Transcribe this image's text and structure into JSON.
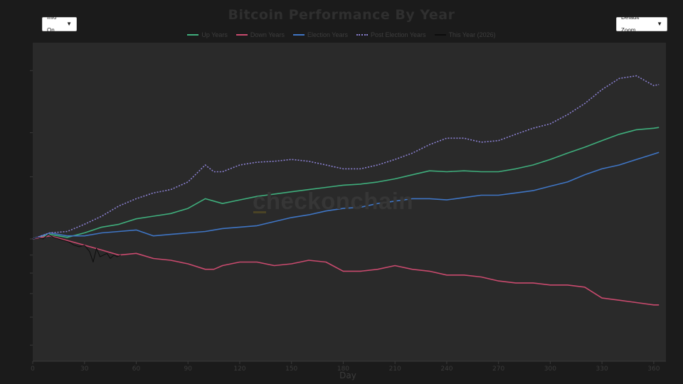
{
  "chart_data": {
    "type": "line",
    "title": "Bitcoin Performance By Year",
    "xlabel": "Day",
    "ylabel": "",
    "xlim": [
      0,
      365
    ],
    "ylim": [
      0.45,
      3.6
    ],
    "log_scale_y": true,
    "grid": false,
    "legend_position": "top-center",
    "x_ticks": [
      0,
      30,
      60,
      90,
      120,
      150,
      180,
      210,
      240,
      270,
      300,
      330,
      360
    ],
    "series": [
      {
        "name": "Up Years",
        "color": "#3fae7c",
        "style": "solid",
        "x": [
          0,
          10,
          20,
          30,
          40,
          50,
          60,
          70,
          80,
          90,
          100,
          105,
          110,
          120,
          130,
          140,
          150,
          160,
          170,
          180,
          190,
          200,
          210,
          220,
          230,
          240,
          250,
          260,
          270,
          280,
          290,
          300,
          310,
          320,
          330,
          340,
          350,
          360,
          363
        ],
        "y": [
          1.0,
          1.03,
          1.01,
          1.04,
          1.08,
          1.1,
          1.14,
          1.16,
          1.18,
          1.22,
          1.3,
          1.28,
          1.26,
          1.29,
          1.32,
          1.34,
          1.36,
          1.38,
          1.4,
          1.42,
          1.43,
          1.45,
          1.48,
          1.52,
          1.56,
          1.55,
          1.56,
          1.55,
          1.55,
          1.58,
          1.62,
          1.68,
          1.75,
          1.82,
          1.9,
          1.98,
          2.04,
          2.06,
          2.07
        ]
      },
      {
        "name": "Down Years",
        "color": "#c94a6e",
        "style": "solid",
        "x": [
          0,
          10,
          20,
          30,
          40,
          50,
          60,
          70,
          80,
          90,
          100,
          105,
          110,
          120,
          130,
          140,
          150,
          160,
          170,
          180,
          190,
          200,
          210,
          220,
          230,
          240,
          250,
          260,
          270,
          280,
          290,
          300,
          310,
          320,
          330,
          340,
          350,
          360,
          363
        ],
        "y": [
          1.0,
          1.02,
          0.99,
          0.96,
          0.93,
          0.9,
          0.91,
          0.88,
          0.87,
          0.85,
          0.82,
          0.82,
          0.84,
          0.86,
          0.86,
          0.84,
          0.85,
          0.87,
          0.86,
          0.81,
          0.81,
          0.82,
          0.84,
          0.82,
          0.81,
          0.79,
          0.79,
          0.78,
          0.76,
          0.75,
          0.75,
          0.74,
          0.74,
          0.73,
          0.68,
          0.67,
          0.66,
          0.65,
          0.65
        ]
      },
      {
        "name": "Election Years",
        "color": "#3f75c4",
        "style": "solid",
        "x": [
          0,
          10,
          20,
          30,
          40,
          50,
          60,
          70,
          80,
          90,
          100,
          105,
          110,
          120,
          130,
          140,
          150,
          160,
          170,
          180,
          190,
          200,
          210,
          220,
          230,
          240,
          250,
          260,
          270,
          280,
          290,
          300,
          310,
          320,
          330,
          340,
          350,
          360,
          363
        ],
        "y": [
          1.0,
          1.04,
          1.02,
          1.02,
          1.04,
          1.05,
          1.06,
          1.02,
          1.03,
          1.04,
          1.05,
          1.06,
          1.07,
          1.08,
          1.09,
          1.12,
          1.15,
          1.17,
          1.2,
          1.22,
          1.23,
          1.26,
          1.28,
          1.3,
          1.3,
          1.29,
          1.31,
          1.33,
          1.33,
          1.35,
          1.37,
          1.41,
          1.45,
          1.52,
          1.58,
          1.62,
          1.68,
          1.74,
          1.76
        ]
      },
      {
        "name": "Post Election Years",
        "color": "#8a80d2",
        "style": "dotted",
        "x": [
          0,
          10,
          20,
          30,
          40,
          50,
          60,
          70,
          80,
          90,
          100,
          105,
          110,
          120,
          130,
          140,
          150,
          160,
          170,
          180,
          190,
          200,
          210,
          220,
          230,
          240,
          250,
          260,
          270,
          280,
          290,
          300,
          310,
          320,
          330,
          340,
          350,
          360,
          363
        ],
        "y": [
          1.0,
          1.04,
          1.05,
          1.1,
          1.16,
          1.24,
          1.3,
          1.35,
          1.38,
          1.45,
          1.62,
          1.55,
          1.55,
          1.62,
          1.65,
          1.66,
          1.68,
          1.66,
          1.62,
          1.58,
          1.58,
          1.62,
          1.68,
          1.75,
          1.85,
          1.93,
          1.93,
          1.88,
          1.9,
          1.98,
          2.06,
          2.12,
          2.25,
          2.42,
          2.65,
          2.85,
          2.9,
          2.72,
          2.74
        ]
      },
      {
        "name": "This Year (2026)",
        "color": "#0d0d0d",
        "style": "solid",
        "x": [
          0,
          3,
          6,
          9,
          12,
          15,
          18,
          21,
          24,
          27,
          30,
          33,
          35,
          37,
          39,
          41,
          43,
          45,
          47,
          49,
          51
        ],
        "y": [
          1.0,
          1.01,
          1.0,
          1.03,
          1.01,
          1.0,
          0.99,
          0.98,
          0.96,
          0.95,
          0.96,
          0.92,
          0.86,
          0.94,
          0.89,
          0.9,
          0.91,
          0.88,
          0.9,
          0.89,
          0.9
        ]
      }
    ]
  },
  "controls": {
    "info_label": "Info On",
    "zoom_label": "Default Zoom",
    "arrow": "▼"
  },
  "watermark": "checkonchain"
}
